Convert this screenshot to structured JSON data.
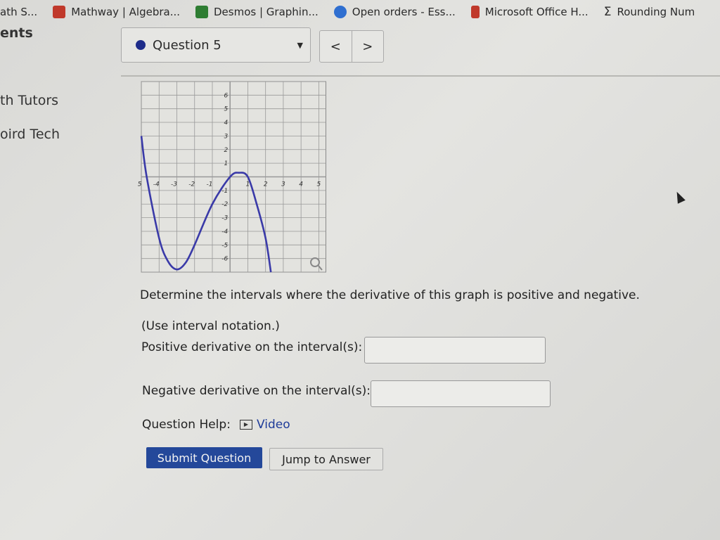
{
  "bookmarks": [
    {
      "label": "ath S...",
      "icon": "bookmark-icon",
      "color": ""
    },
    {
      "label": "Mathway | Algebra...",
      "icon": "mathway-icon",
      "color": "#c0392b"
    },
    {
      "label": "Desmos | Graphin...",
      "icon": "desmos-icon",
      "color": "#2e7d32"
    },
    {
      "label": "Open orders - Ess...",
      "icon": "orders-icon",
      "color": "#2f6fd0"
    },
    {
      "label": "Microsoft Office H...",
      "icon": "office-icon",
      "color": "#c0392b"
    },
    {
      "label": "Rounding Num",
      "icon": "sigma-icon",
      "color": ""
    }
  ],
  "sidebar": {
    "items": [
      "ents",
      "th Tutors",
      "oird Tech"
    ]
  },
  "question_selector": {
    "label": "Question 5",
    "prev": "<",
    "next": ">",
    "arrow": "▼"
  },
  "chart_data": {
    "type": "line",
    "xlim": [
      -5,
      5
    ],
    "ylim": [
      -7,
      7
    ],
    "grid": true,
    "xticks": [
      -5,
      -4,
      -3,
      -2,
      -1,
      1,
      2,
      3,
      4,
      5
    ],
    "yticks": [
      -6,
      -5,
      -4,
      -3,
      -2,
      -1,
      1,
      2,
      3,
      4,
      5,
      6
    ],
    "color": "#3a3aa8",
    "points": [
      [
        -5,
        3
      ],
      [
        -4.7,
        0
      ],
      [
        -4,
        -4.5
      ],
      [
        -3.5,
        -6.2
      ],
      [
        -3,
        -6.8
      ],
      [
        -2.5,
        -6.3
      ],
      [
        -2,
        -5
      ],
      [
        -1,
        -2
      ],
      [
        0,
        0
      ],
      [
        0.5,
        0.3
      ],
      [
        1,
        0
      ],
      [
        1.5,
        -2
      ],
      [
        2,
        -4.5
      ],
      [
        2.3,
        -7
      ]
    ]
  },
  "question": {
    "prompt": "Determine the intervals where the derivative of this graph is positive and negative.",
    "note": "(Use interval notation.)",
    "positive_label": "Positive derivative on the interval(s):",
    "positive_value": "",
    "negative_label": "Negative derivative on the interval(s):",
    "negative_value": "",
    "help_label": "Question Help:",
    "video_label": "Video",
    "submit": "Submit Question",
    "jump": "Jump to Answer"
  }
}
